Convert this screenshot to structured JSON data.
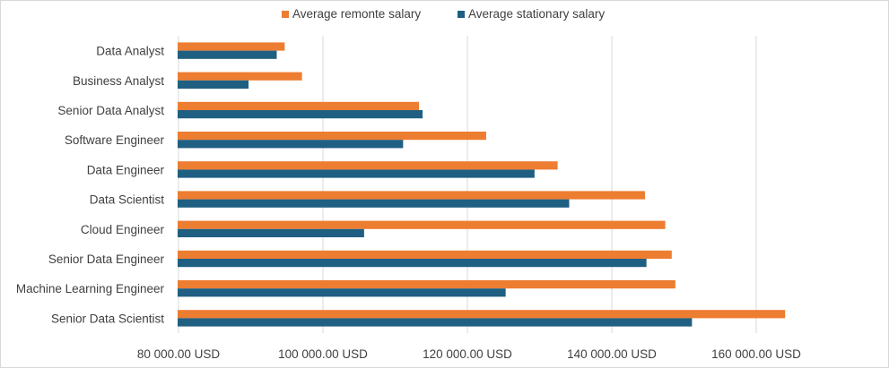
{
  "chart_data": {
    "type": "bar",
    "orientation": "horizontal",
    "categories": [
      "Data Analyst",
      "Business Analyst",
      "Senior Data Analyst",
      "Software Engineer",
      "Data Engineer",
      "Data Scientist",
      "Cloud Engineer",
      "Senior Data Engineer",
      "Machine Learning Engineer",
      "Senior Data Scientist"
    ],
    "series": [
      {
        "name": "Average remonte salary",
        "color": "#ED7D31",
        "values": [
          94700,
          97100,
          113300,
          122600,
          132500,
          144600,
          147400,
          148300,
          148800,
          164000
        ]
      },
      {
        "name": "Average stationary salary",
        "color": "#1F5F82",
        "values": [
          93600,
          89700,
          113800,
          111100,
          129300,
          134100,
          105700,
          144800,
          125300,
          151100
        ]
      }
    ],
    "xlim": [
      78000,
      166000
    ],
    "ticks": [
      80000,
      100000,
      120000,
      140000,
      160000
    ],
    "tick_labels": [
      "80 000.00 USD",
      "100 000.00 USD",
      "120 000.00 USD",
      "140 000.00 USD",
      "160 000.00 USD"
    ],
    "grid": true,
    "legend": "top-center",
    "title": "",
    "xlabel": "",
    "ylabel": ""
  }
}
